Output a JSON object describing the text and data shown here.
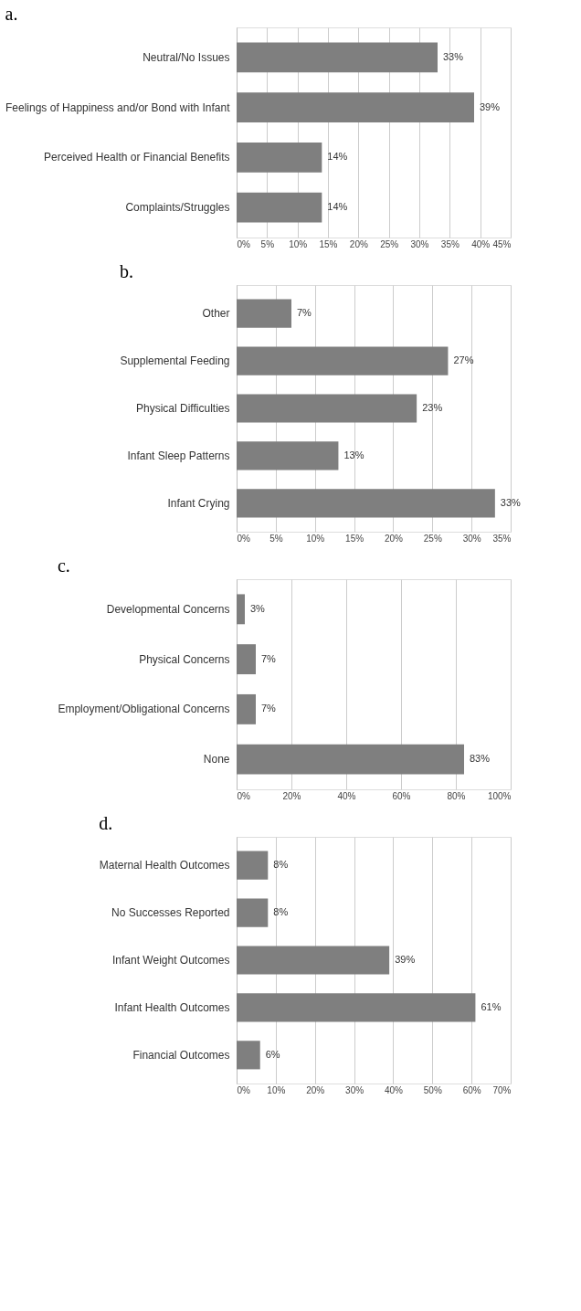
{
  "chart_data": [
    {
      "type": "bar",
      "orientation": "horizontal",
      "title": "a.",
      "categories": [
        "Neutral/No Issues",
        "Feelings of Happiness and/or Bond with Infant",
        "Perceived Health or Financial Benefits",
        "Complaints/Struggles"
      ],
      "values": [
        33,
        39,
        14,
        14
      ],
      "color": "#7f7f7f",
      "value_labels": [
        "33%",
        "39%",
        "14%",
        "14%"
      ],
      "xlim": [
        0,
        45
      ],
      "xticks": [
        {
          "value": 0,
          "label": "0%"
        },
        {
          "value": 5,
          "label": "5%"
        },
        {
          "value": 10,
          "label": "10%"
        },
        {
          "value": 15,
          "label": "15%"
        },
        {
          "value": 20,
          "label": "20%"
        },
        {
          "value": 25,
          "label": "25%"
        },
        {
          "value": 30,
          "label": "30%"
        },
        {
          "value": 35,
          "label": "35%"
        },
        {
          "value": 40,
          "label": "40%"
        },
        {
          "value": 45,
          "label": "45%"
        }
      ],
      "grid": "x"
    },
    {
      "type": "bar",
      "orientation": "horizontal",
      "title": "b.",
      "categories": [
        "Other",
        "Supplemental Feeding",
        "Physical Difficulties",
        "Infant Sleep Patterns",
        "Infant Crying"
      ],
      "values": [
        7,
        27,
        23,
        13,
        33
      ],
      "color": "#7f7f7f",
      "value_labels": [
        "7%",
        "27%",
        "23%",
        "13%",
        "33%"
      ],
      "xlim": [
        0,
        35
      ],
      "xticks": [
        {
          "value": 0,
          "label": "0%"
        },
        {
          "value": 5,
          "label": "5%"
        },
        {
          "value": 10,
          "label": "10%"
        },
        {
          "value": 15,
          "label": "15%"
        },
        {
          "value": 20,
          "label": "20%"
        },
        {
          "value": 25,
          "label": "25%"
        },
        {
          "value": 30,
          "label": "30%"
        },
        {
          "value": 35,
          "label": "35%"
        }
      ],
      "grid": "x"
    },
    {
      "type": "bar",
      "orientation": "horizontal",
      "title": "c.",
      "categories": [
        "Developmental Concerns",
        "Physical Concerns",
        "Employment/Obligational Concerns",
        "None"
      ],
      "values": [
        3,
        7,
        7,
        83
      ],
      "color": "#7f7f7f",
      "value_labels": [
        "3%",
        "7%",
        "7%",
        "83%"
      ],
      "xlim": [
        0,
        100
      ],
      "xticks": [
        {
          "value": 0,
          "label": "0%"
        },
        {
          "value": 20,
          "label": "20%"
        },
        {
          "value": 40,
          "label": "40%"
        },
        {
          "value": 60,
          "label": "60%"
        },
        {
          "value": 80,
          "label": "80%"
        },
        {
          "value": 100,
          "label": "100%"
        }
      ],
      "grid": "x"
    },
    {
      "type": "bar",
      "orientation": "horizontal",
      "title": "d.",
      "categories": [
        "Maternal Health Outcomes",
        "No Successes Reported",
        "Infant Weight Outcomes",
        "Infant Health Outcomes",
        "Financial Outcomes"
      ],
      "values": [
        8,
        8,
        39,
        61,
        6
      ],
      "color": "#7f7f7f",
      "value_labels": [
        "8%",
        "8%",
        "39%",
        "61%",
        "6%"
      ],
      "xlim": [
        0,
        70
      ],
      "xticks": [
        {
          "value": 0,
          "label": "0%"
        },
        {
          "value": 10,
          "label": "10%"
        },
        {
          "value": 20,
          "label": "20%"
        },
        {
          "value": 30,
          "label": "30%"
        },
        {
          "value": 40,
          "label": "40%"
        },
        {
          "value": 50,
          "label": "50%"
        },
        {
          "value": 60,
          "label": "60%"
        },
        {
          "value": 70,
          "label": "70%"
        }
      ],
      "grid": "x"
    }
  ]
}
